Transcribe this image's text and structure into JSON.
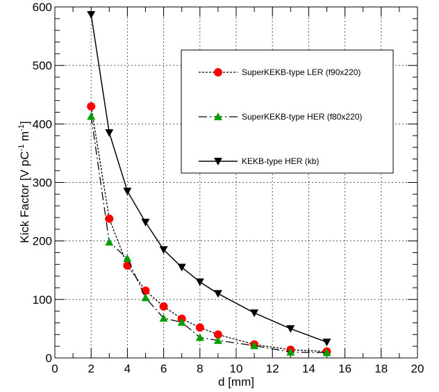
{
  "chart_data": {
    "type": "line",
    "xlabel": "d [mm]",
    "ylabel": "Kick Factor [V pC",
    "ylabel_sup1": "-1",
    "ylabel_mid": " m",
    "ylabel_sup2": "-1",
    "ylabel_end": "]",
    "xlim": [
      0,
      20
    ],
    "ylim": [
      0,
      600
    ],
    "x_ticks": [
      0,
      2,
      4,
      6,
      8,
      10,
      12,
      14,
      16,
      18,
      20
    ],
    "y_ticks": [
      0,
      100,
      200,
      300,
      400,
      500,
      600
    ],
    "grid": true,
    "legend_position": "upper-right",
    "series": [
      {
        "name": "SuperKEKB-type LER (f90x220)",
        "line": "dotted",
        "marker": "circle",
        "marker_color": "#ff0000",
        "x": [
          2,
          3,
          4,
          5,
          6,
          7,
          8,
          9,
          11,
          13,
          15
        ],
        "y": [
          430,
          238,
          158,
          115,
          88,
          67,
          52,
          40,
          23,
          14,
          11
        ]
      },
      {
        "name": "SuperKEKB-type HER (f80x220)",
        "line": "dash-dot",
        "marker": "triangle-up",
        "marker_color": "#00a000",
        "x": [
          2,
          3,
          4,
          5,
          6,
          7,
          8,
          9,
          11,
          13,
          15
        ],
        "y": [
          413,
          198,
          170,
          103,
          68,
          61,
          35,
          30,
          21,
          10,
          9
        ]
      },
      {
        "name": "KEKB-type HER (kb)",
        "line": "solid",
        "marker": "triangle-down",
        "marker_color": "#000000",
        "x": [
          2,
          3,
          4,
          5,
          6,
          7,
          8,
          9,
          11,
          13,
          15
        ],
        "y": [
          587,
          385,
          285,
          232,
          185,
          155,
          130,
          110,
          77,
          50,
          27
        ]
      }
    ]
  }
}
